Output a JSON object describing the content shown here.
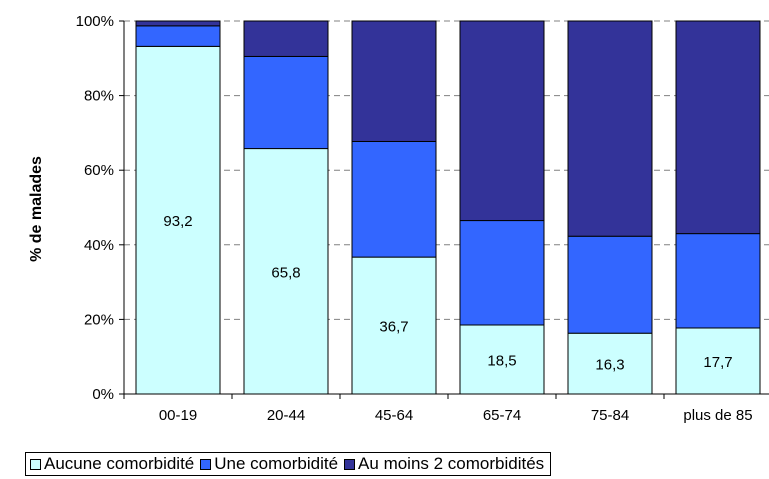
{
  "chart_data": {
    "type": "bar",
    "stacked": true,
    "percent": true,
    "title": "",
    "xlabel": "",
    "ylabel": "% de malades",
    "ylim": [
      0,
      100
    ],
    "yticks": [
      "0%",
      "20%",
      "40%",
      "60%",
      "80%",
      "100%"
    ],
    "grid": true,
    "legend_position": "bottom",
    "categories": [
      "00-19",
      "20-44",
      "45-64",
      "65-74",
      "75-84",
      "plus de 85"
    ],
    "series": [
      {
        "name": "Aucune comorbidité",
        "color": "#ccffff",
        "values": [
          93.2,
          65.8,
          36.7,
          18.5,
          16.3,
          17.7
        ],
        "labels": [
          "93,2",
          "65,8",
          "36,7",
          "18,5",
          "16,3",
          "17,7"
        ]
      },
      {
        "name": "Une comorbidité",
        "color": "#3366ff",
        "values": [
          5.5,
          24.7,
          31.0,
          28.0,
          26.0,
          25.3
        ]
      },
      {
        "name": "Au moins 2 comorbidités",
        "color": "#333399",
        "values": [
          1.3,
          9.5,
          32.3,
          53.5,
          57.7,
          57.0
        ]
      }
    ]
  }
}
